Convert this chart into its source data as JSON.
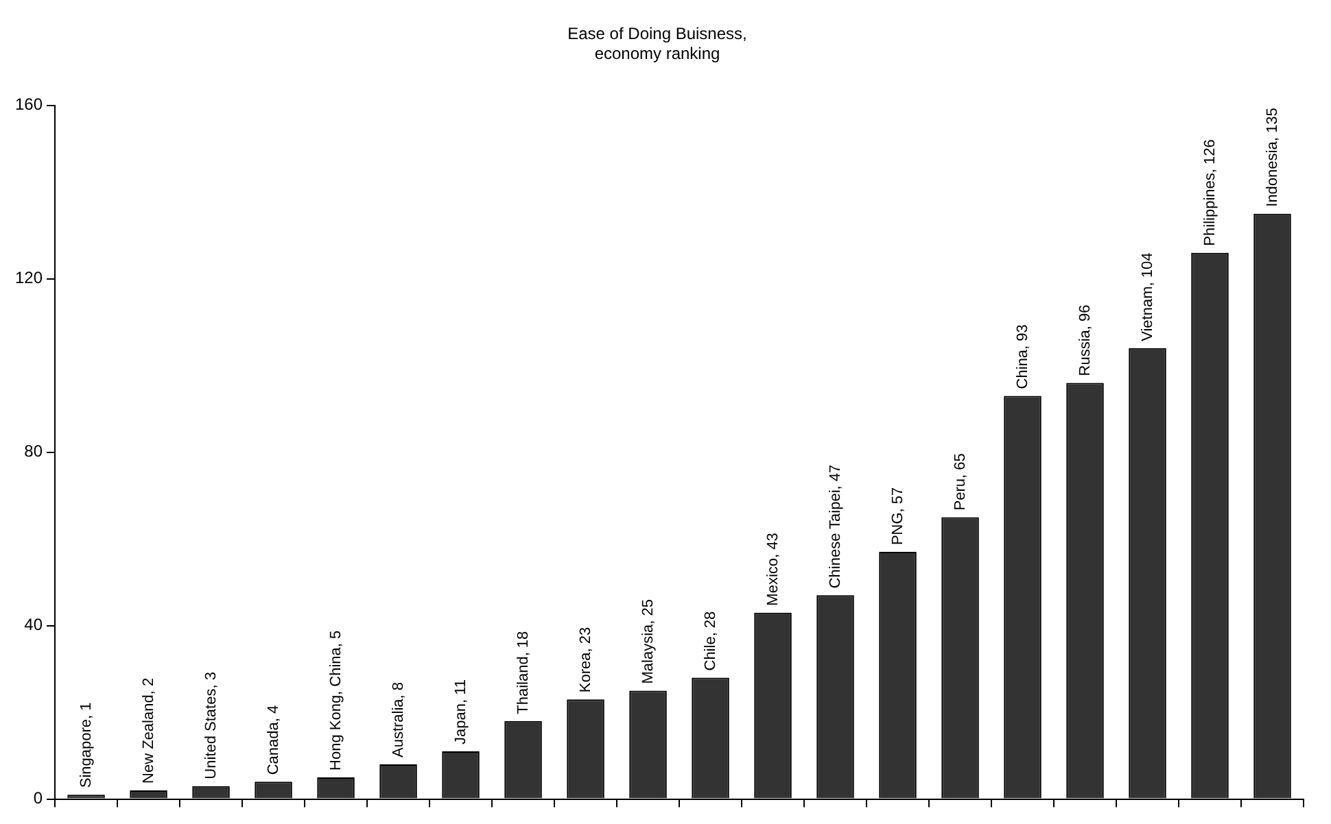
{
  "chart_data": {
    "type": "bar",
    "title": [
      "Ease of Doing Buisness,",
      "economy ranking"
    ],
    "categories": [
      null,
      null,
      null,
      null,
      null,
      null,
      null,
      null,
      null,
      null,
      null,
      null,
      null,
      null,
      null,
      null,
      null,
      null,
      null,
      null
    ],
    "values": [
      1,
      2,
      3,
      4,
      5,
      8,
      11,
      18,
      23,
      25,
      28,
      43,
      47,
      57,
      65,
      93,
      96,
      104,
      126,
      135
    ],
    "value_labels": [
      "Singapore, 1",
      "New Zealand, 2",
      "United States, 3",
      "Canada, 4",
      "Hong Kong, China, 5",
      "Australia, 8",
      "Japan, 11",
      "Thailand, 18",
      "Korea, 23",
      "Malaysia, 25",
      "Chile, 28",
      "Mexico, 43",
      "Chinese Taipei, 47",
      "PNG, 57",
      "Peru, 65",
      "China, 93",
      "Russia, 96",
      "Vietnam, 104",
      "Philippines, 126",
      "Indonesia, 135"
    ],
    "color": "#333333",
    "ylim": [
      0,
      160
    ],
    "yticks": [
      0,
      40,
      80,
      120,
      160
    ],
    "grid": false,
    "legend": false,
    "tick_labels": "y"
  }
}
